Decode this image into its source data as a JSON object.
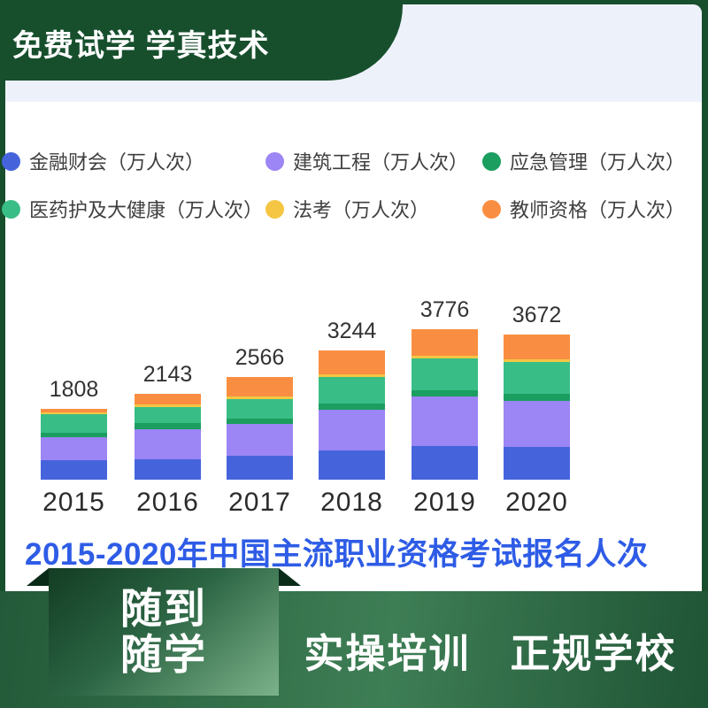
{
  "header": {
    "slogan": "免费试学 学真技术"
  },
  "legend": [
    {
      "label": "金融财会（万人次）",
      "color": "#4564dc"
    },
    {
      "label": "建筑工程（万人次）",
      "color": "#9c85f4"
    },
    {
      "label": "应急管理（万人次）",
      "color": "#1b9e5f"
    },
    {
      "label": "医药护及大健康（万人次）",
      "color": "#38bd86"
    },
    {
      "label": "法考（万人次）",
      "color": "#f5c644"
    },
    {
      "label": "教师资格（万人次）",
      "color": "#f98e42"
    }
  ],
  "chart_data": {
    "type": "bar",
    "stacked": true,
    "title": "2015-2020年中国主流职业资格考试报名人次",
    "unit": "万人次",
    "categories": [
      "2015",
      "2016",
      "2017",
      "2018",
      "2019",
      "2020"
    ],
    "totals": [
      1808,
      2143,
      2566,
      3244,
      3776,
      3672
    ],
    "series": [
      {
        "name": "金融财会",
        "color": "#4564dc",
        "values": [
          497,
          520,
          595,
          740,
          845,
          825
        ]
      },
      {
        "name": "建筑工程",
        "color": "#9c85f4",
        "values": [
          588,
          760,
          805,
          1020,
          1235,
          1166
        ]
      },
      {
        "name": "应急管理",
        "color": "#1b9e5f",
        "values": [
          105,
          150,
          125,
          155,
          162,
          184
        ]
      },
      {
        "name": "医药护及大健康",
        "color": "#38bd86",
        "values": [
          475,
          390,
          485,
          665,
          795,
          811
        ]
      },
      {
        "name": "法考",
        "color": "#f5c644",
        "values": [
          53,
          65,
          75,
          62,
          66,
          59
        ]
      },
      {
        "name": "教师资格",
        "color": "#f98e42",
        "values": [
          90,
          258,
          481,
          602,
          673,
          627
        ]
      }
    ],
    "legend_position": "top",
    "grid": false,
    "value_labels": "totals shown above each bar"
  },
  "footer": {
    "tab_line1": "随到",
    "tab_line2": "随学",
    "slogan_left": "实操培训",
    "slogan_right": "正规学校"
  },
  "colors": {
    "brand_green": "#174f2d",
    "title_blue": "#2e5ce6",
    "panel_top": "#edf2fa"
  }
}
